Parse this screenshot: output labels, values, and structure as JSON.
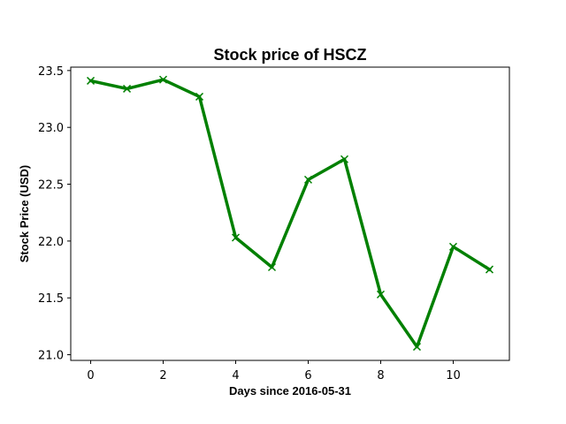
{
  "chart_data": {
    "type": "line",
    "title": "Stock price of HSCZ",
    "xlabel": "Days since 2016-05-31",
    "ylabel": "Stock Price (USD)",
    "x": [
      0,
      1,
      2,
      3,
      4,
      5,
      6,
      7,
      8,
      9,
      10,
      11
    ],
    "series": [
      {
        "values": [
          23.41,
          23.34,
          23.42,
          23.27,
          22.03,
          21.77,
          22.54,
          22.72,
          21.53,
          21.07,
          21.95,
          21.75
        ],
        "color": "#008000",
        "marker": "x"
      }
    ],
    "xlim": [
      -0.55,
      11.55
    ],
    "ylim": [
      20.95,
      23.53
    ],
    "xticks": [
      0,
      2,
      4,
      6,
      8,
      10
    ],
    "yticks": [
      21.0,
      21.5,
      22.0,
      22.5,
      23.0,
      23.5
    ],
    "xtick_labels": [
      "0",
      "2",
      "4",
      "6",
      "8",
      "10"
    ],
    "ytick_labels": [
      "21.0",
      "21.5",
      "22.0",
      "22.5",
      "23.0",
      "23.5"
    ],
    "grid": false,
    "legend": "none"
  }
}
